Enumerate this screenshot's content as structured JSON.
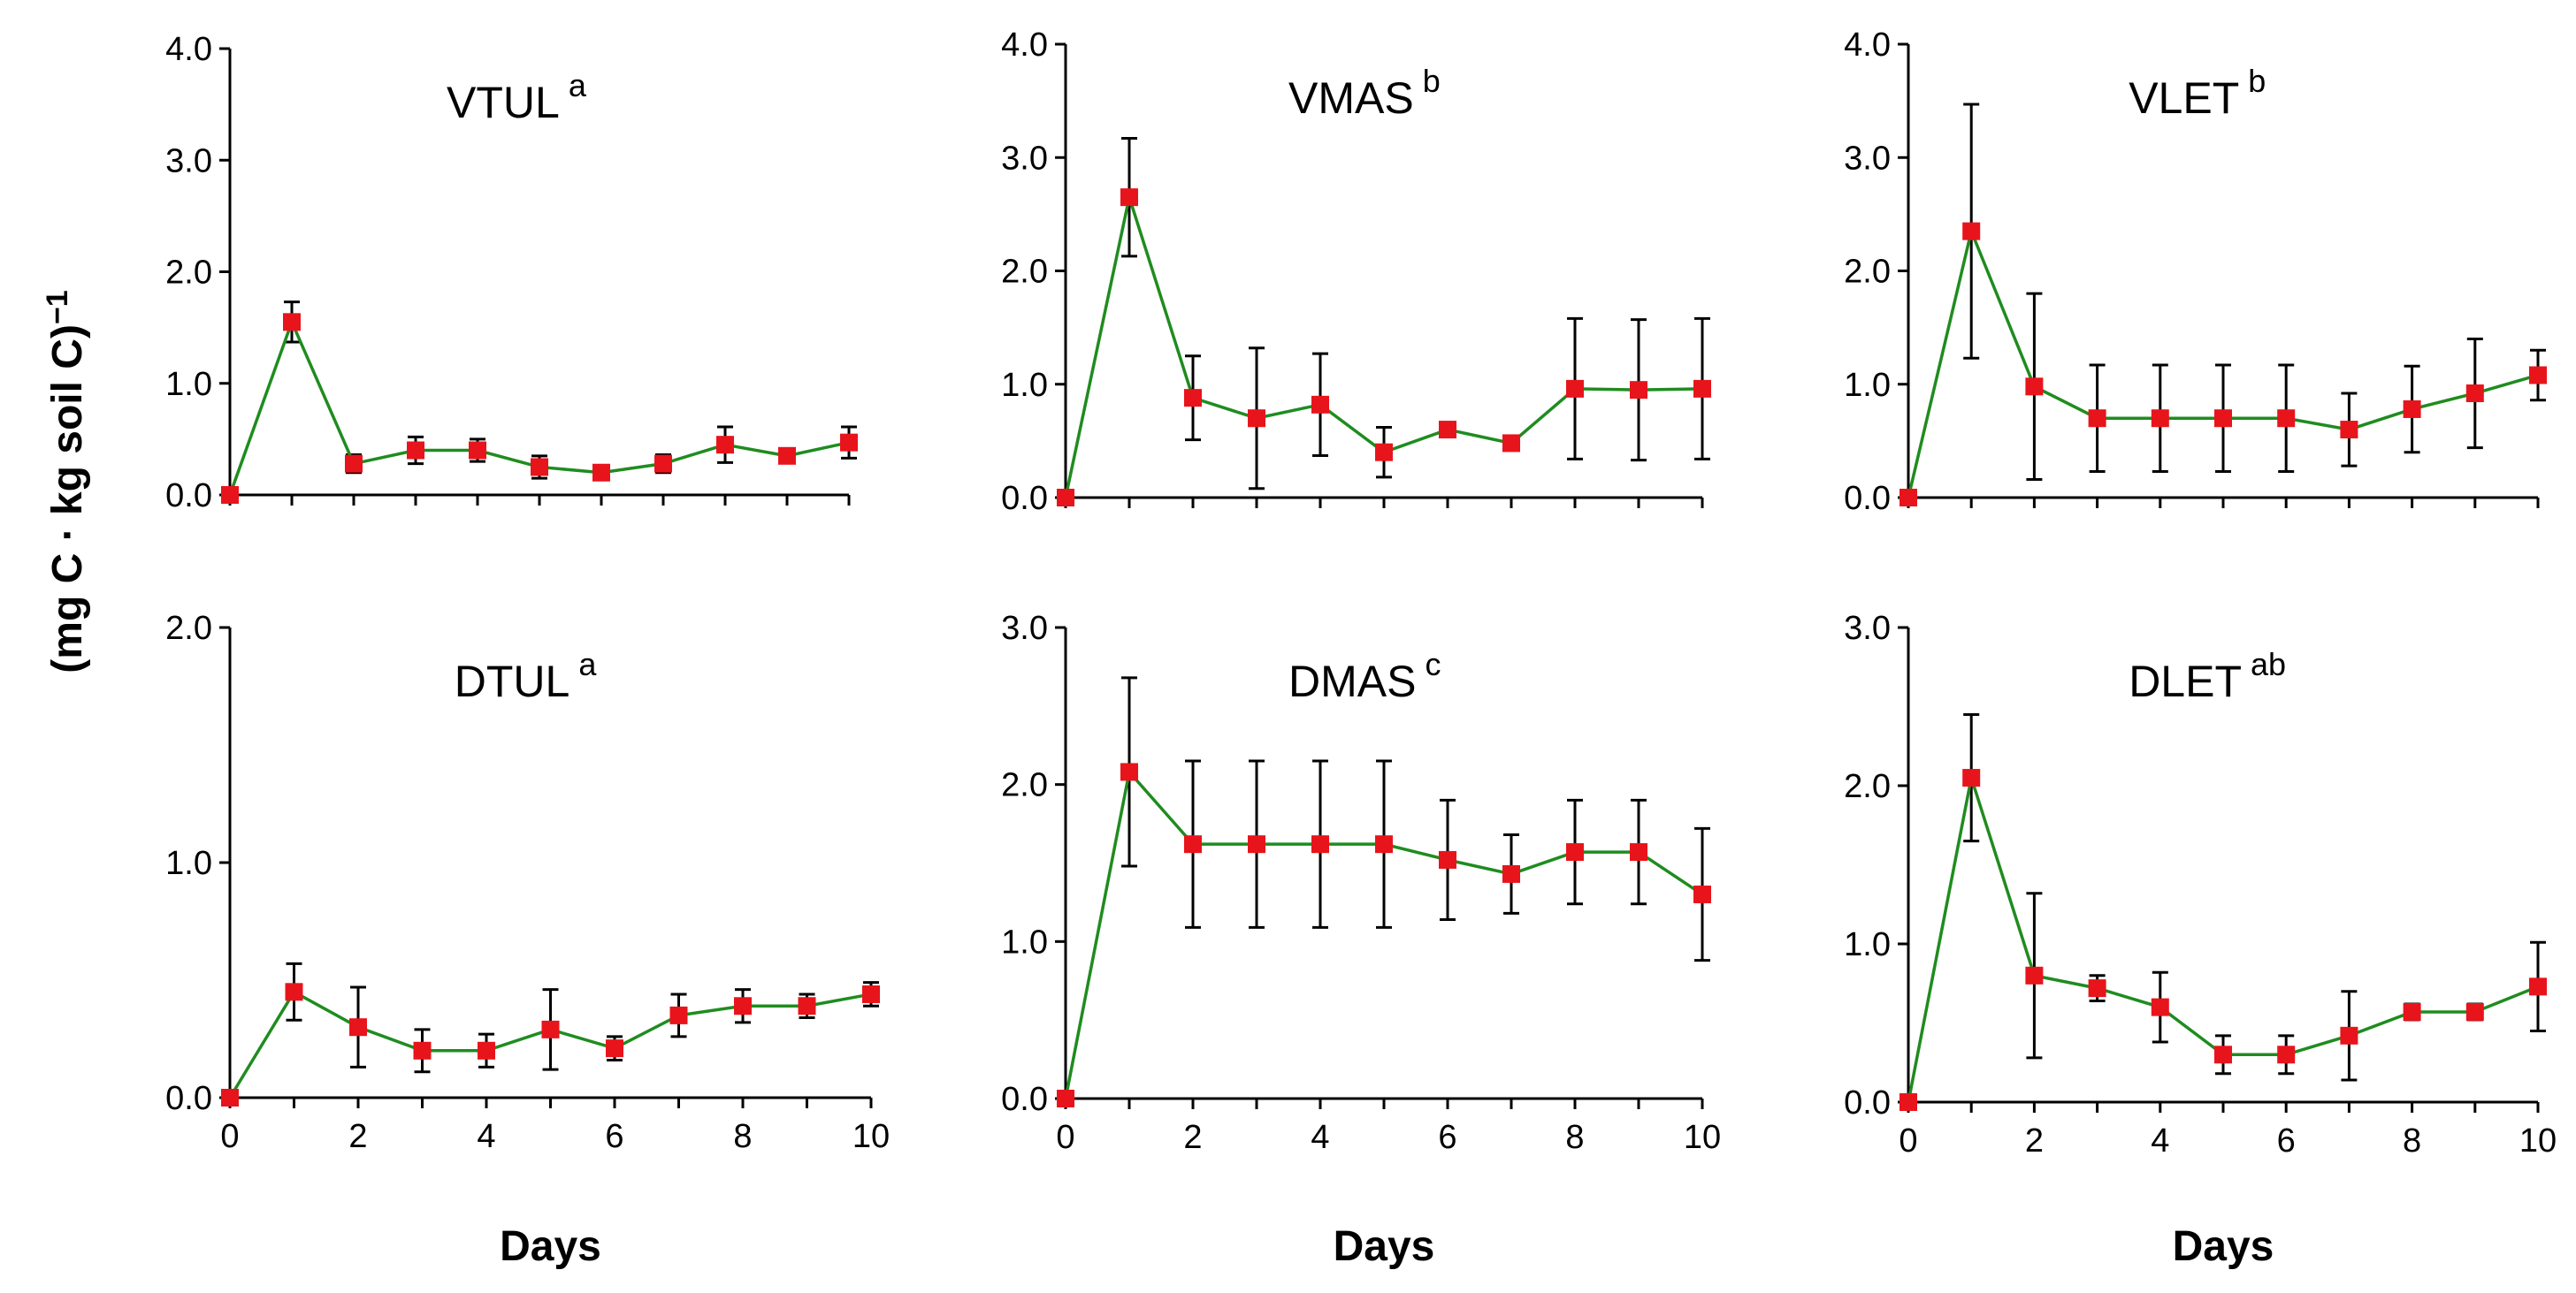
{
  "chart_data": [
    {
      "type": "line",
      "title": "VTUL",
      "title_superscript": "a",
      "ylim": [
        0,
        4.0
      ],
      "yticks": [
        "0.0",
        "1.0",
        "2.0",
        "3.0",
        "4.0"
      ],
      "xlim": [
        0,
        10
      ],
      "xticks": [],
      "xlabel": "",
      "x": [
        0,
        1,
        2,
        3,
        4,
        5,
        6,
        7,
        8,
        9,
        10
      ],
      "values": [
        0.0,
        1.55,
        0.28,
        0.4,
        0.4,
        0.25,
        0.2,
        0.28,
        0.45,
        0.35,
        0.47
      ],
      "errors": [
        0.0,
        0.18,
        0.08,
        0.12,
        0.1,
        0.1,
        0.05,
        0.08,
        0.16,
        0.06,
        0.14
      ]
    },
    {
      "type": "line",
      "title": "VMAS",
      "title_superscript": "b",
      "ylim": [
        0,
        4.0
      ],
      "yticks": [
        "0.0",
        "1.0",
        "2.0",
        "3.0",
        "4.0"
      ],
      "xlim": [
        0,
        10
      ],
      "xticks": [],
      "xlabel": "",
      "x": [
        0,
        1,
        2,
        3,
        4,
        5,
        6,
        7,
        8,
        9,
        10
      ],
      "values": [
        0.0,
        2.65,
        0.88,
        0.7,
        0.82,
        0.4,
        0.6,
        0.48,
        0.96,
        0.95,
        0.96
      ],
      "errors": [
        0.0,
        0.52,
        0.37,
        0.62,
        0.45,
        0.22,
        0.05,
        0.05,
        0.62,
        0.62,
        0.62
      ]
    },
    {
      "type": "line",
      "title": "VLET",
      "title_superscript": "b",
      "ylim": [
        0,
        4.0
      ],
      "yticks": [
        "0.0",
        "1.0",
        "2.0",
        "3.0",
        "4.0"
      ],
      "xlim": [
        0,
        10
      ],
      "xticks": [],
      "xlabel": "",
      "x": [
        0,
        1,
        2,
        3,
        4,
        5,
        6,
        7,
        8,
        9,
        10
      ],
      "values": [
        0.0,
        2.35,
        0.98,
        0.7,
        0.7,
        0.7,
        0.7,
        0.6,
        0.78,
        0.92,
        1.08
      ],
      "errors": [
        0.0,
        1.12,
        0.82,
        0.47,
        0.47,
        0.47,
        0.47,
        0.32,
        0.38,
        0.48,
        0.22
      ]
    },
    {
      "type": "line",
      "title": "DTUL",
      "title_superscript": "a",
      "ylim": [
        0,
        2.0
      ],
      "yticks": [
        "0.0",
        "1.0",
        "2.0"
      ],
      "xlim": [
        0,
        10
      ],
      "xticks": [
        "0",
        "2",
        "4",
        "6",
        "8",
        "10"
      ],
      "xlabel": "Days",
      "x": [
        0,
        1,
        2,
        3,
        4,
        5,
        6,
        7,
        8,
        9,
        10
      ],
      "values": [
        0.0,
        0.45,
        0.3,
        0.2,
        0.2,
        0.29,
        0.21,
        0.35,
        0.39,
        0.39,
        0.44
      ],
      "errors": [
        0.0,
        0.12,
        0.17,
        0.09,
        0.07,
        0.17,
        0.05,
        0.09,
        0.07,
        0.05,
        0.05
      ]
    },
    {
      "type": "line",
      "title": "DMAS",
      "title_superscript": "c",
      "ylim": [
        0,
        3.0
      ],
      "yticks": [
        "0.0",
        "1.0",
        "2.0",
        "3.0"
      ],
      "xlim": [
        0,
        10
      ],
      "xticks": [
        "0",
        "2",
        "4",
        "6",
        "8",
        "10"
      ],
      "xlabel": "Days",
      "x": [
        0,
        1,
        2,
        3,
        4,
        5,
        6,
        7,
        8,
        9,
        10
      ],
      "values": [
        0.0,
        2.08,
        1.62,
        1.62,
        1.62,
        1.62,
        1.52,
        1.43,
        1.57,
        1.57,
        1.3
      ],
      "errors": [
        0.0,
        0.6,
        0.53,
        0.53,
        0.53,
        0.53,
        0.38,
        0.25,
        0.33,
        0.33,
        0.42
      ]
    },
    {
      "type": "line",
      "title": "DLET",
      "title_superscript": "ab",
      "ylim": [
        0,
        3.0
      ],
      "yticks": [
        "0.0",
        "1.0",
        "2.0",
        "3.0"
      ],
      "xlim": [
        0,
        10
      ],
      "xticks": [
        "0",
        "2",
        "4",
        "6",
        "8",
        "10"
      ],
      "xlabel": "Days",
      "x": [
        0,
        1,
        2,
        3,
        4,
        5,
        6,
        7,
        8,
        9,
        10
      ],
      "values": [
        0.0,
        2.05,
        0.8,
        0.72,
        0.6,
        0.3,
        0.3,
        0.42,
        0.57,
        0.57,
        0.73
      ],
      "errors": [
        0.0,
        0.4,
        0.52,
        0.08,
        0.22,
        0.12,
        0.12,
        0.28,
        0.05,
        0.05,
        0.28
      ]
    }
  ],
  "figure": {
    "ylabel": "(mg C · kg soil C)",
    "ylabel_superscript": "−1",
    "colors": {
      "line": "#1f8c1f",
      "marker": "#e8141c",
      "error_bar": "#000000",
      "axis": "#000000"
    }
  }
}
